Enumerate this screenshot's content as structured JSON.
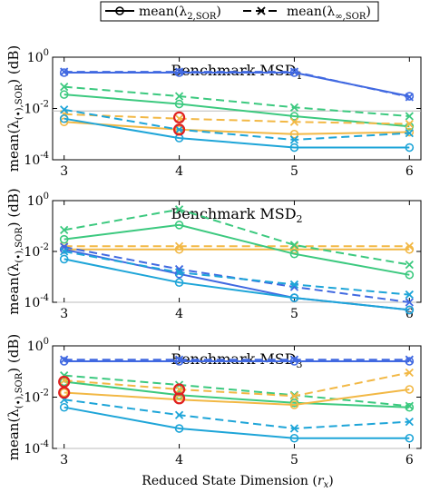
{
  "legend": {
    "solid_label": "mean(λ2,SOR)",
    "dashed_label": "mean(λ∞,SOR)"
  },
  "xlabel": "Reduced State Dimension (r_x)",
  "ylabel": "mean(λ(•),SOR) (dB)",
  "colors": {
    "blue": "#4169e1",
    "green": "#3cc97f",
    "yellow": "#f2b845",
    "cyan": "#1ea5d8",
    "highlight": "#e02020",
    "refline": "#bbbbbb"
  },
  "chart_data": [
    {
      "type": "line",
      "title": "Benchmark MSD1",
      "x": [
        3,
        4,
        5,
        6
      ],
      "xlim": [
        2.9,
        6.1
      ],
      "ylim": [
        0.0001,
        1
      ],
      "yscale": "log",
      "yticks": [
        "10^0",
        "10^-2",
        "10^-4"
      ],
      "refline": 0.008,
      "series": [
        {
          "color": "blue",
          "style": "solid",
          "values": [
            0.25,
            0.25,
            0.25,
            0.03
          ]
        },
        {
          "color": "blue",
          "style": "dashed",
          "values": [
            0.27,
            0.27,
            0.27,
            0.028
          ]
        },
        {
          "color": "green",
          "style": "solid",
          "values": [
            0.035,
            0.015,
            0.005,
            0.002
          ]
        },
        {
          "color": "green",
          "style": "dashed",
          "values": [
            0.07,
            0.03,
            0.011,
            0.005
          ]
        },
        {
          "color": "yellow",
          "style": "solid",
          "values": [
            0.003,
            0.0015,
            0.001,
            0.0012
          ]
        },
        {
          "color": "yellow",
          "style": "dashed",
          "values": [
            0.006,
            0.004,
            0.003,
            0.0025
          ]
        },
        {
          "color": "cyan",
          "style": "solid",
          "values": [
            0.004,
            0.0007,
            0.0003,
            0.0003
          ]
        },
        {
          "color": "cyan",
          "style": "dashed",
          "values": [
            0.009,
            0.0015,
            0.0006,
            0.0011
          ]
        }
      ],
      "highlights": [
        {
          "x": 4,
          "y": 0.0045
        },
        {
          "x": 4,
          "y": 0.0015
        }
      ]
    },
    {
      "type": "line",
      "title": "Benchmark MSD2",
      "x": [
        3,
        4,
        5,
        6
      ],
      "xlim": [
        2.9,
        6.1
      ],
      "ylim": [
        0.0001,
        1
      ],
      "yscale": "log",
      "yticks": [
        "10^0",
        "10^-2",
        "10^-4"
      ],
      "refline": 0.0001,
      "series": [
        {
          "color": "yellow",
          "style": "solid",
          "values": [
            0.012,
            0.012,
            0.012,
            0.012
          ]
        },
        {
          "color": "yellow",
          "style": "dashed",
          "values": [
            0.016,
            0.016,
            0.016,
            0.016
          ]
        },
        {
          "color": "green",
          "style": "solid",
          "values": [
            0.03,
            0.11,
            0.008,
            0.0012
          ]
        },
        {
          "color": "green",
          "style": "dashed",
          "values": [
            0.07,
            0.45,
            0.018,
            0.003
          ]
        },
        {
          "color": "blue",
          "style": "solid",
          "values": [
            0.012,
            0.0013,
            0.00015,
            5e-05
          ]
        },
        {
          "color": "blue",
          "style": "dashed",
          "values": [
            0.015,
            0.002,
            0.0004,
            0.0001
          ]
        },
        {
          "color": "cyan",
          "style": "solid",
          "values": [
            0.005,
            0.0006,
            0.00015,
            5e-05
          ]
        },
        {
          "color": "cyan",
          "style": "dashed",
          "values": [
            0.01,
            0.0015,
            0.0005,
            0.0002
          ]
        }
      ],
      "highlights": []
    },
    {
      "type": "line",
      "title": "Benchmark MSD3",
      "x": [
        3,
        4,
        5,
        6
      ],
      "xlim": [
        2.9,
        6.1
      ],
      "ylim": [
        0.0001,
        1
      ],
      "yscale": "log",
      "yticks": [
        "10^0",
        "10^-2",
        "10^-4"
      ],
      "refline": 0.0001,
      "series": [
        {
          "color": "blue",
          "style": "solid",
          "values": [
            0.25,
            0.25,
            0.25,
            0.25
          ]
        },
        {
          "color": "blue",
          "style": "dashed",
          "values": [
            0.29,
            0.29,
            0.29,
            0.29
          ]
        },
        {
          "color": "green",
          "style": "solid",
          "values": [
            0.04,
            0.012,
            0.006,
            0.004
          ]
        },
        {
          "color": "green",
          "style": "dashed",
          "values": [
            0.07,
            0.03,
            0.012,
            0.0045
          ]
        },
        {
          "color": "yellow",
          "style": "solid",
          "values": [
            0.015,
            0.008,
            0.005,
            0.02
          ]
        },
        {
          "color": "yellow",
          "style": "dashed",
          "values": [
            0.045,
            0.02,
            0.011,
            0.09
          ]
        },
        {
          "color": "cyan",
          "style": "solid",
          "values": [
            0.004,
            0.0006,
            0.00025,
            0.00025
          ]
        },
        {
          "color": "cyan",
          "style": "dashed",
          "values": [
            0.008,
            0.002,
            0.0006,
            0.0011
          ]
        }
      ],
      "highlights": [
        {
          "x": 3,
          "y": 0.04
        },
        {
          "x": 3,
          "y": 0.015
        },
        {
          "x": 4,
          "y": 0.02
        },
        {
          "x": 4,
          "y": 0.009
        }
      ]
    }
  ]
}
